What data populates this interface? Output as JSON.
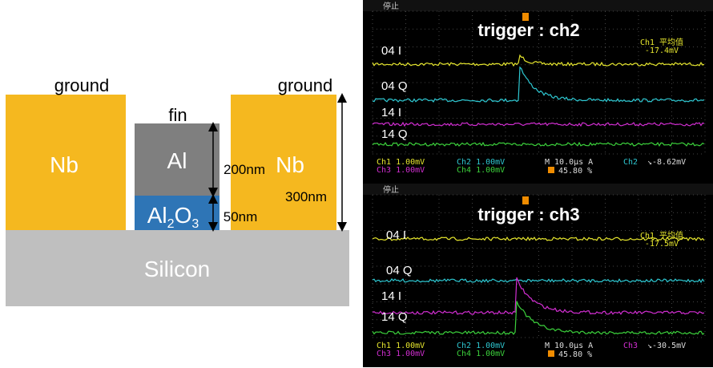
{
  "diagram": {
    "ground_left": "ground",
    "ground_right": "ground",
    "fin": "fin",
    "nb_left": "Nb",
    "nb_right": "Nb",
    "al": "Al",
    "al2o3": [
      "Al",
      "2",
      "O",
      "3"
    ],
    "dim_al": "200nm",
    "dim_al2o3": "50nm",
    "dim_nb": "300nm",
    "silicon": "Silicon"
  },
  "scopes": [
    {
      "status": "停止",
      "title": "trigger : ch2",
      "avg_label": "Ch1 平均值",
      "avg_value": "-17.4mV",
      "channels": [
        "04  I",
        "04  Q",
        "14  I",
        "14  Q"
      ],
      "ch1": "Ch1  1.00mV",
      "ch2": "Ch2  1.00mV",
      "ch3": "Ch3  1.00mV",
      "ch4": "Ch4  1.00mV",
      "timebase": "M 10.0μs  A",
      "trig_ch": "Ch2",
      "trig_level": "↘-8.62mV",
      "position": "45.80 %"
    },
    {
      "status": "停止",
      "title": "trigger : ch3",
      "avg_label": "Ch1 平均值",
      "avg_value": "-17.5mV",
      "channels": [
        "04  I",
        "04  Q",
        "14  I",
        "14  Q"
      ],
      "ch1": "Ch1  1.00mV",
      "ch2": "Ch2  1.00mV",
      "ch3": "Ch3  1.00mV",
      "ch4": "Ch4  1.00mV",
      "timebase": "M 10.0μs  A",
      "trig_ch": "Ch3",
      "trig_level": "↘-30.5mV",
      "position": "45.80 %"
    }
  ]
}
